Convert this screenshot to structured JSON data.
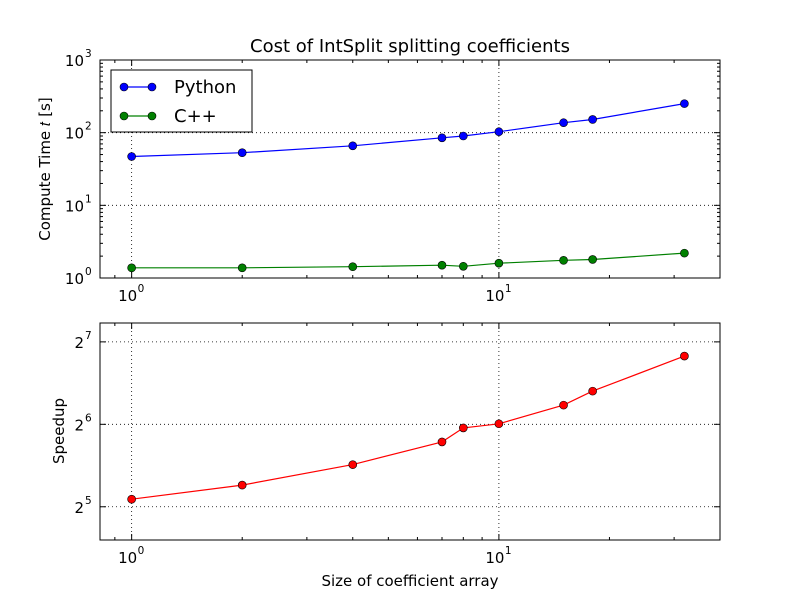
{
  "chart_data": [
    {
      "type": "line",
      "title": "Cost of IntSplit splitting coefficients",
      "xlabel": "",
      "ylabel": "Compute Time 𝑡 [s]",
      "xscale": "log10",
      "yscale": "log10",
      "xlim": [
        0.82,
        40
      ],
      "ylim": [
        1,
        1000
      ],
      "grid": true,
      "legend": "upper-left",
      "x_ticks": [
        {
          "value": 1,
          "label": "10",
          "sup": "0"
        },
        {
          "value": 10,
          "label": "10",
          "sup": "1"
        }
      ],
      "y_ticks": [
        {
          "value": 1,
          "label": "10",
          "sup": "0"
        },
        {
          "value": 10,
          "label": "10",
          "sup": "1"
        },
        {
          "value": 100,
          "label": "10",
          "sup": "2"
        },
        {
          "value": 1000,
          "label": "10",
          "sup": "3"
        }
      ],
      "x": [
        1,
        2,
        4,
        7,
        8,
        10,
        15,
        18,
        32
      ],
      "series": [
        {
          "name": "Python",
          "color": "#0000ff",
          "values": [
            47,
            53,
            66,
            85,
            90,
            103,
            137,
            152,
            251
          ]
        },
        {
          "name": "C++",
          "color": "#008000",
          "values": [
            1.38,
            1.38,
            1.43,
            1.5,
            1.45,
            1.6,
            1.75,
            1.8,
            2.2
          ]
        }
      ]
    },
    {
      "type": "line",
      "title": "",
      "xlabel": "Size of coefficient array",
      "ylabel": "Speedup",
      "xscale": "log10",
      "yscale": "log2",
      "xlim": [
        0.82,
        40
      ],
      "ylim": [
        24.2,
        150
      ],
      "grid": true,
      "x_ticks": [
        {
          "value": 1,
          "label": "10",
          "sup": "0"
        },
        {
          "value": 10,
          "label": "10",
          "sup": "1"
        }
      ],
      "y_ticks": [
        {
          "value": 32,
          "label": "2",
          "sup": "5"
        },
        {
          "value": 64,
          "label": "2",
          "sup": "6"
        },
        {
          "value": 128,
          "label": "2",
          "sup": "7"
        }
      ],
      "x": [
        1,
        2,
        4,
        7,
        8,
        10,
        15,
        18,
        32
      ],
      "series": [
        {
          "name": "",
          "color": "#ff0000",
          "values": [
            34.1,
            38.4,
            45.6,
            55.2,
            62.1,
            64.3,
            75.2,
            84.6,
            113.6
          ]
        }
      ]
    }
  ]
}
